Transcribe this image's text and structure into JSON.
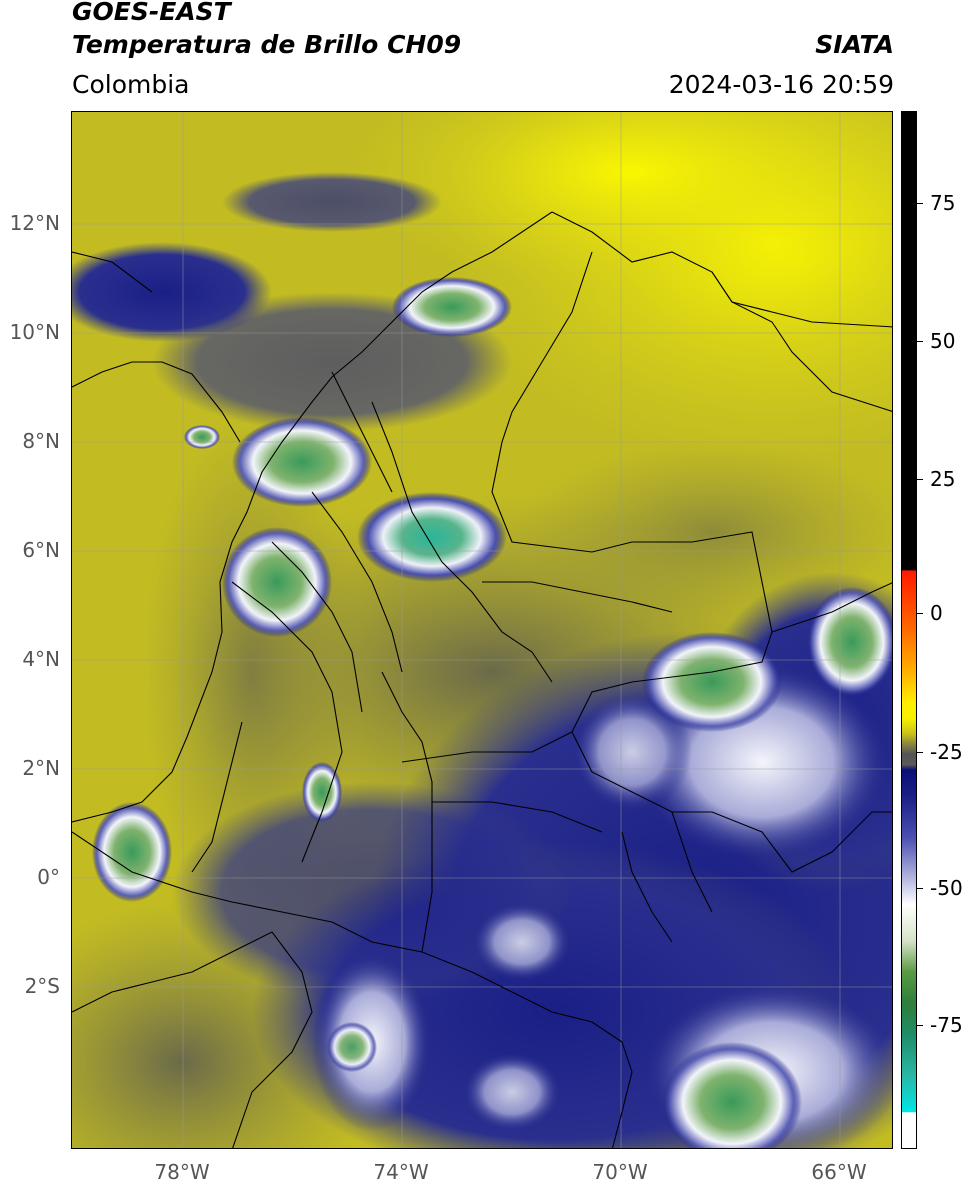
{
  "header": {
    "title_line1": "GOES-EAST",
    "title_line2": "Temperatura de Brillo CH09",
    "organization": "SIATA",
    "region": "Colombia",
    "timestamp": "2024-03-16 20:59"
  },
  "map": {
    "lat_range": [
      -5,
      14
    ],
    "lon_range": [
      -80,
      -65
    ],
    "lat_ticks": [
      "12°N",
      "10°N",
      "8°N",
      "6°N",
      "4°N",
      "2°N",
      "0°",
      "2°S"
    ],
    "lon_ticks": [
      "78°W",
      "74°W",
      "70°W",
      "66°W"
    ],
    "grid": true,
    "colors": {
      "warm_background": "#c9c21a",
      "bright_yellow": "#f5f000",
      "olive": "#7a7a3a",
      "deep_cloud": "#1a1f86",
      "cloud_top": "#e9ecf5",
      "coldest": "#3a8f4a",
      "border_lines": "#000000"
    }
  },
  "colorbar": {
    "labels": [
      "75",
      "50",
      "25",
      "0",
      "-25",
      "-50",
      "-75"
    ],
    "values": [
      75,
      50,
      25,
      0,
      -25,
      -50,
      -75
    ],
    "range": [
      -93,
      90
    ]
  }
}
